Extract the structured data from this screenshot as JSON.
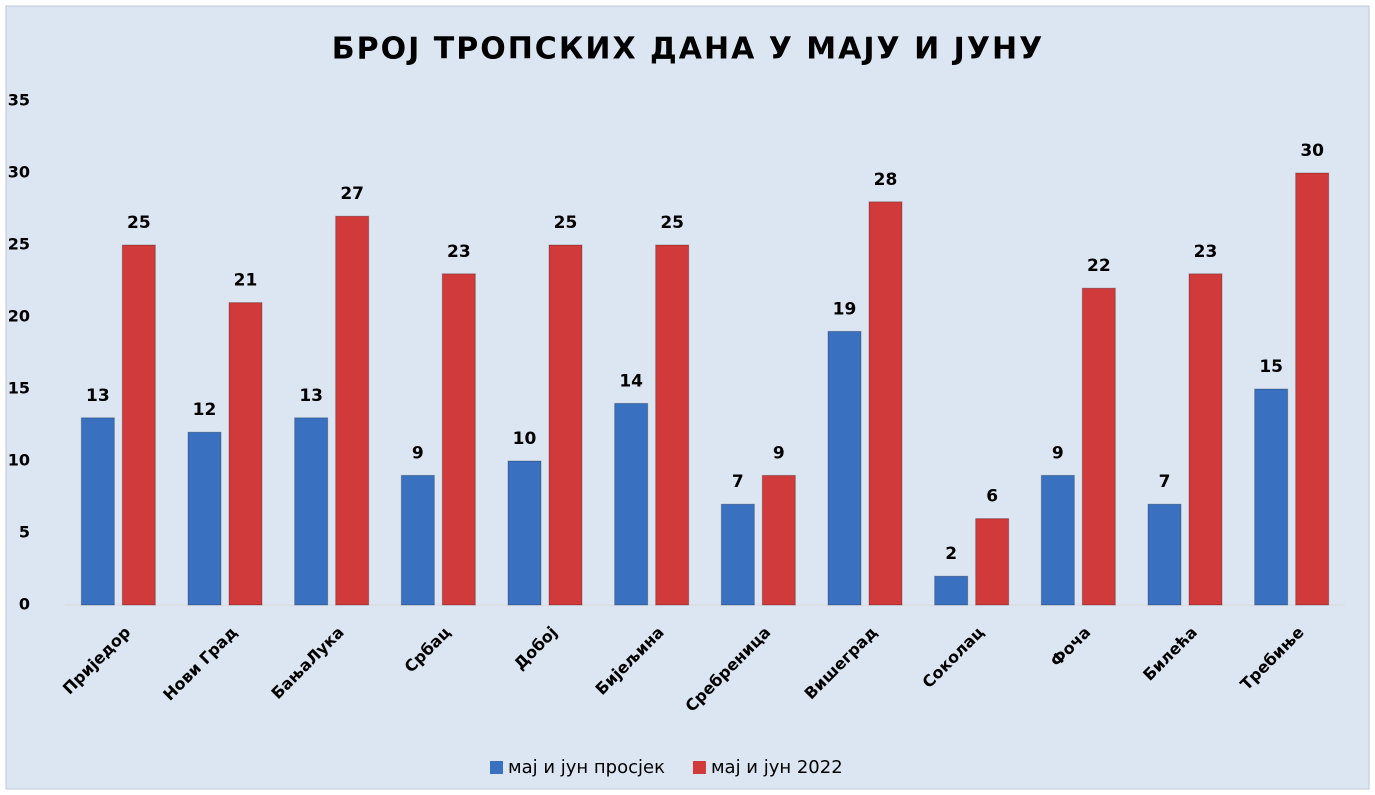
{
  "chart_data": {
    "type": "bar",
    "title": "БРОЈ ТРОПСКИХ ДАНА У МАЈУ И ЈУНУ",
    "categories": [
      "Приједор",
      "Нови Град",
      "БањаЛука",
      "Србац",
      "Добој",
      "Бијељина",
      "Сребреница",
      "Вишеград",
      "Соколац",
      "Фоча",
      "Билећа",
      "Требиње"
    ],
    "series": [
      {
        "name": "мај и јун просјек",
        "color": "#3a70c0",
        "values": [
          13,
          12,
          13,
          9,
          10,
          14,
          7,
          19,
          2,
          9,
          7,
          15
        ]
      },
      {
        "name": "мај и јун 2022",
        "color": "#d03a3a",
        "values": [
          25,
          21,
          27,
          23,
          25,
          25,
          9,
          28,
          6,
          22,
          23,
          30
        ]
      }
    ],
    "ylim": [
      0,
      35
    ],
    "yticks": [
      0,
      5,
      10,
      15,
      20,
      25,
      30,
      35
    ],
    "grid": false,
    "legend": "bottom"
  }
}
